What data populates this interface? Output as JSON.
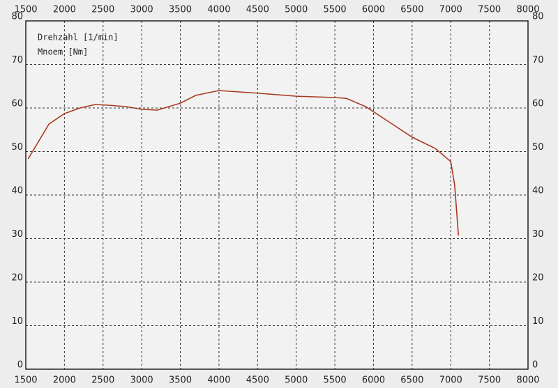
{
  "chart_data": {
    "type": "line",
    "x_label": "Drehzahl [1/min]",
    "x": [
      1530,
      1800,
      2000,
      2200,
      2400,
      2600,
      2800,
      3000,
      3200,
      3500,
      3700,
      4000,
      4500,
      5000,
      5500,
      5650,
      5900,
      6200,
      6500,
      6800,
      7000,
      7050,
      7100
    ],
    "series": [
      {
        "name": "Mnoem [Nm]",
        "color": "#a83a1e",
        "values": [
          48.3,
          56.3,
          58.7,
          60.0,
          60.8,
          60.6,
          60.3,
          59.7,
          59.5,
          61.1,
          62.9,
          64.0,
          63.4,
          62.7,
          62.4,
          62.2,
          60.3,
          56.8,
          53.3,
          50.7,
          47.7,
          42.4,
          30.7
        ]
      }
    ],
    "xlim": [
      1500,
      8000
    ],
    "xticks": [
      1500,
      2000,
      2500,
      3000,
      3500,
      4000,
      4500,
      5000,
      5500,
      6000,
      6500,
      7000,
      7500,
      8000
    ],
    "ylim": [
      0,
      80
    ],
    "yticks": [
      0,
      10,
      20,
      30,
      40,
      50,
      60,
      70,
      80
    ],
    "grid": true
  }
}
